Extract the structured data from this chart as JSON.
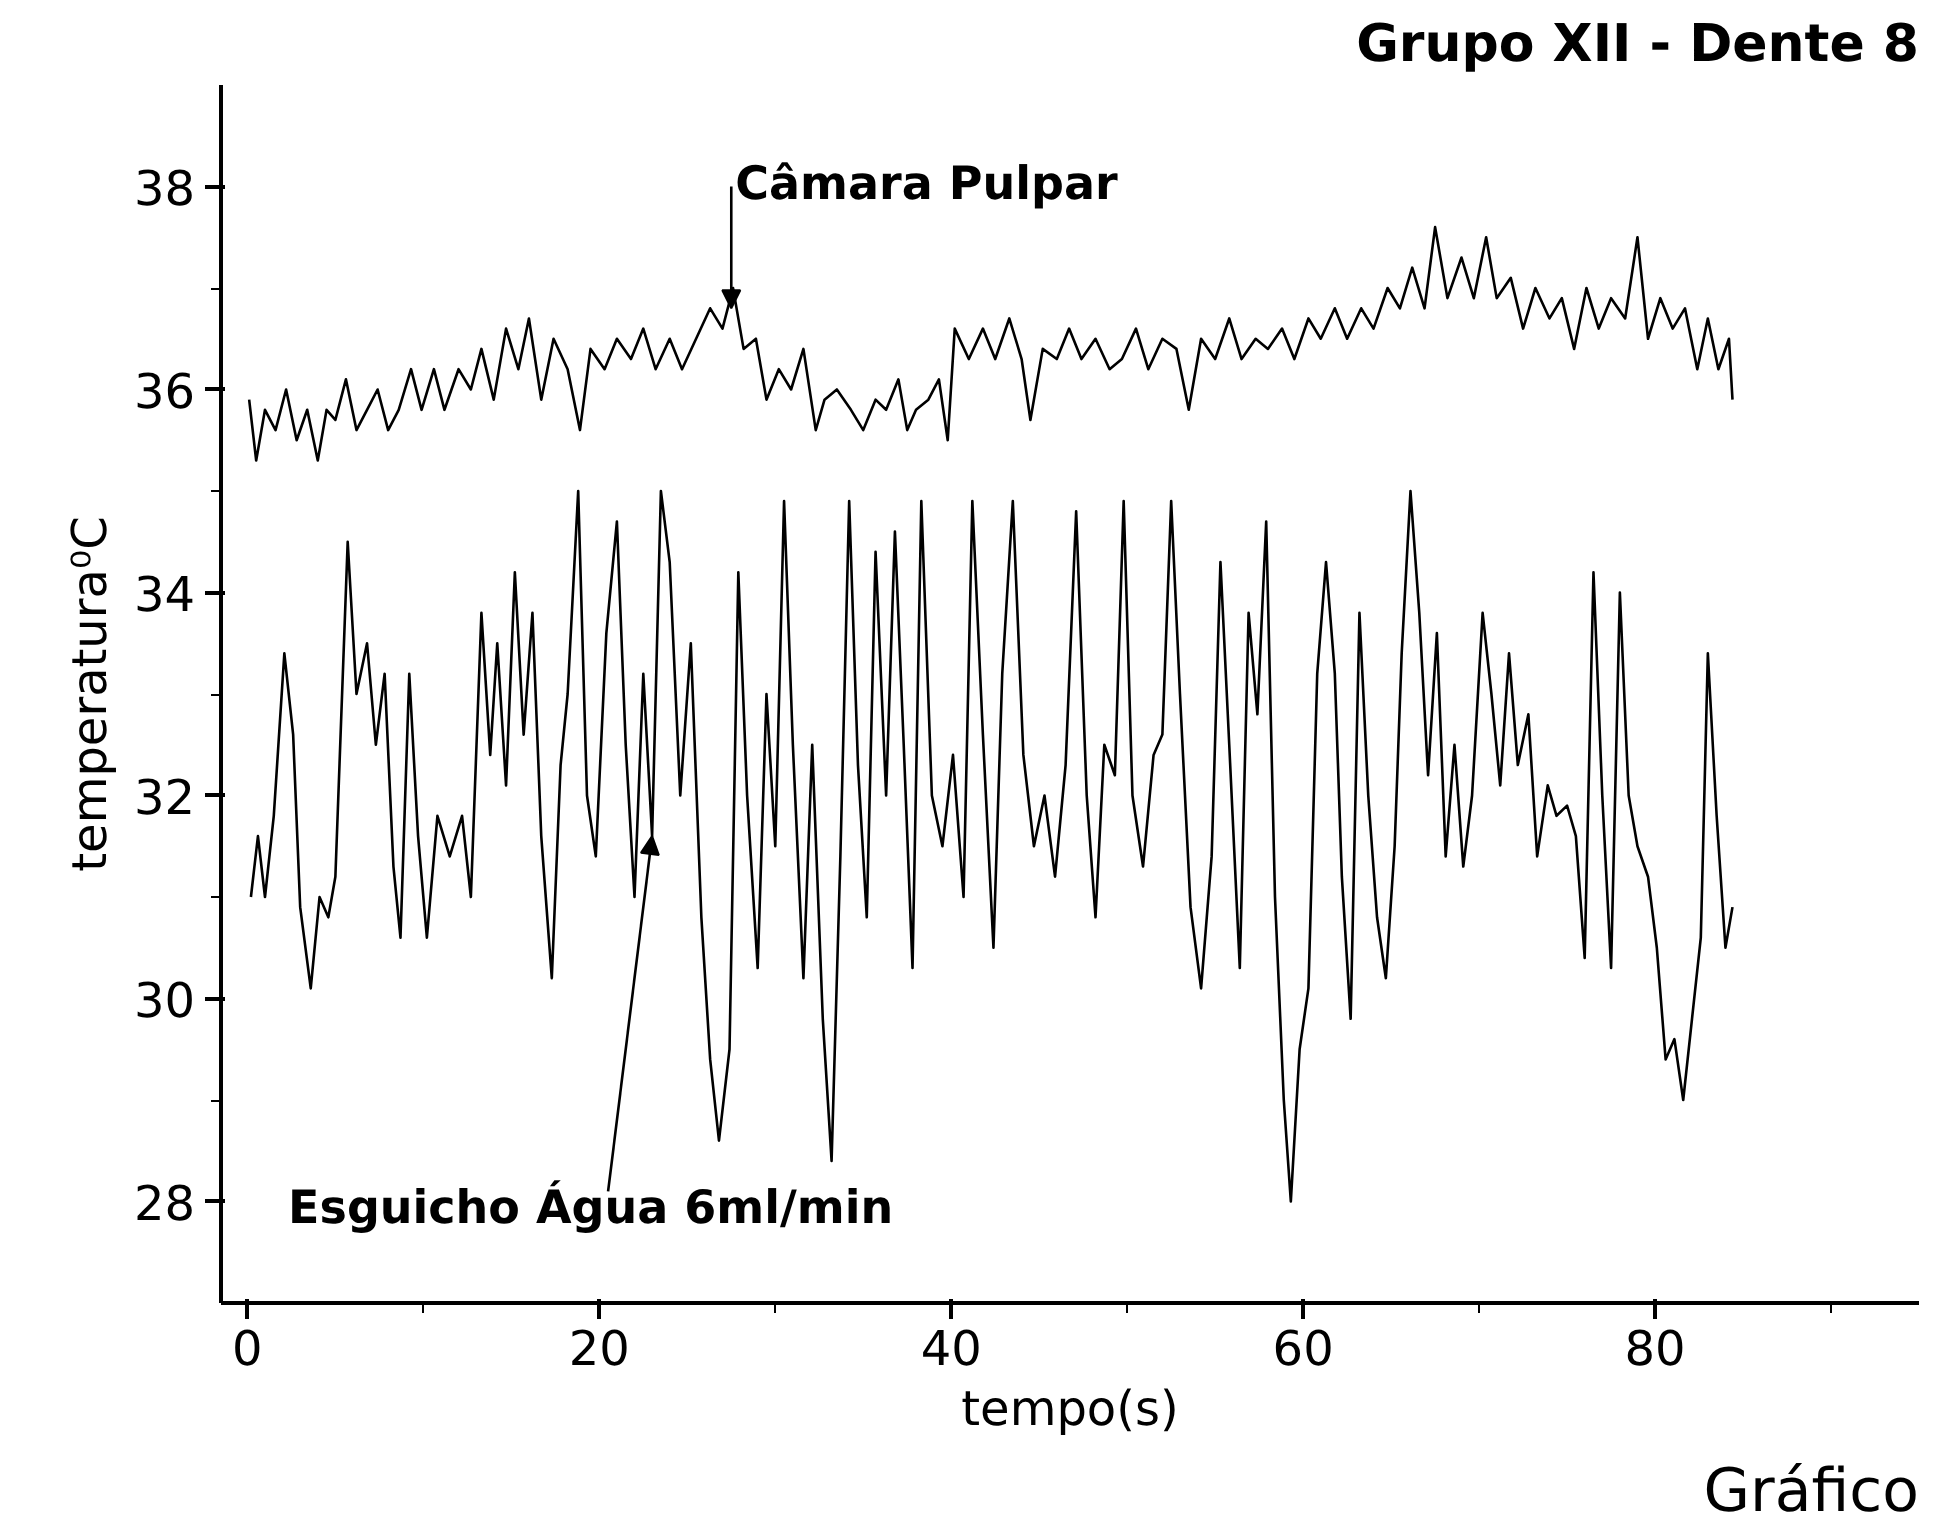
{
  "chart_data": {
    "type": "line",
    "title": "Grupo XII - Dente 8",
    "xlabel": "tempo(s)",
    "ylabel": "temperatura⁰C",
    "xlim": [
      -1.5,
      95
    ],
    "xticks": [
      0,
      20,
      40,
      60,
      80
    ],
    "ylim": [
      27,
      39
    ],
    "yticks": [
      28,
      30,
      32,
      34,
      36,
      38
    ],
    "grid": false,
    "line_style": "solid",
    "marker": "none",
    "annotations": [
      {
        "text": "Câmara Pulpar",
        "x": 27.5,
        "y": 36.8
      },
      {
        "text": "Esguicho Água 6ml/min",
        "x": 23.0,
        "y": 31.6
      },
      "Gráfico"
    ],
    "series": [
      {
        "color": "#000000",
        "x": [
          0.1,
          0.5,
          1.0,
          1.6,
          2.2,
          2.8,
          3.4,
          4.0,
          4.5,
          5.0,
          5.6,
          6.2,
          6.8,
          7.4,
          8.0,
          8.6,
          9.3,
          9.9,
          10.6,
          11.2,
          12.0,
          12.7,
          13.3,
          14.0,
          14.7,
          15.4,
          16.0,
          16.7,
          17.4,
          18.2,
          18.9,
          19.5,
          20.3,
          21.0,
          21.8,
          22.5,
          23.2,
          24.0,
          24.7,
          25.5,
          26.3,
          27.0,
          27.6,
          28.2,
          28.9,
          29.5,
          30.2,
          30.9,
          31.6,
          32.3,
          32.8,
          33.5,
          34.3,
          35.0,
          35.7,
          36.3,
          37.0,
          37.5,
          38.0,
          38.7,
          39.3,
          39.8,
          40.2,
          41.0,
          41.8,
          42.5,
          43.3,
          44.0,
          44.5,
          45.2,
          46.0,
          46.7,
          47.4,
          48.2,
          49.0,
          49.7,
          50.5,
          51.2,
          52.0,
          52.8,
          53.5,
          54.2,
          55.0,
          55.8,
          56.5,
          57.3,
          58.0,
          58.8,
          59.5,
          60.3,
          61.0,
          61.8,
          62.5,
          63.3,
          64.0,
          64.8,
          65.5,
          66.2,
          66.9,
          67.5,
          68.2,
          69.0,
          69.7,
          70.4,
          71.0,
          71.8,
          72.5,
          73.2,
          74.0,
          74.7,
          75.4,
          76.1,
          76.8,
          77.5,
          78.3,
          79.0,
          79.6,
          80.3,
          81.0,
          81.7,
          82.4,
          83.0,
          83.6,
          84.2,
          84.4
        ],
        "values": [
          35.9,
          35.3,
          35.8,
          35.6,
          36.0,
          35.5,
          35.8,
          35.3,
          35.8,
          35.7,
          36.1,
          35.6,
          35.8,
          36.0,
          35.6,
          35.8,
          36.2,
          35.8,
          36.2,
          35.8,
          36.2,
          36.0,
          36.4,
          35.9,
          36.6,
          36.2,
          36.7,
          35.9,
          36.5,
          36.2,
          35.6,
          36.4,
          36.2,
          36.5,
          36.3,
          36.6,
          36.2,
          36.5,
          36.2,
          36.5,
          36.8,
          36.6,
          37.0,
          36.4,
          36.5,
          35.9,
          36.2,
          36.0,
          36.4,
          35.6,
          35.9,
          36.0,
          35.8,
          35.6,
          35.9,
          35.8,
          36.1,
          35.6,
          35.8,
          35.9,
          36.1,
          35.5,
          36.6,
          36.3,
          36.6,
          36.3,
          36.7,
          36.3,
          35.7,
          36.4,
          36.3,
          36.6,
          36.3,
          36.5,
          36.2,
          36.3,
          36.6,
          36.2,
          36.5,
          36.4,
          35.8,
          36.5,
          36.3,
          36.7,
          36.3,
          36.5,
          36.4,
          36.6,
          36.3,
          36.7,
          36.5,
          36.8,
          36.5,
          36.8,
          36.6,
          37.0,
          36.8,
          37.2,
          36.8,
          37.6,
          36.9,
          37.3,
          36.9,
          37.5,
          36.9,
          37.1,
          36.6,
          37.0,
          36.7,
          36.9,
          36.4,
          37.0,
          36.6,
          36.9,
          36.7,
          37.5,
          36.5,
          36.9,
          36.6,
          36.8,
          36.2,
          36.7,
          36.2,
          36.5,
          35.9
        ]
      },
      {
        "color": "#000000",
        "x": [
          0.2,
          0.6,
          1.0,
          1.5,
          2.1,
          2.6,
          3.0,
          3.6,
          4.1,
          4.6,
          5.0,
          5.7,
          6.2,
          6.8,
          7.3,
          7.8,
          8.3,
          8.7,
          9.2,
          9.7,
          10.2,
          10.8,
          11.5,
          12.2,
          12.7,
          13.3,
          13.8,
          14.2,
          14.7,
          15.2,
          15.7,
          16.2,
          16.7,
          17.3,
          17.8,
          18.2,
          18.8,
          19.3,
          19.8,
          20.4,
          21.0,
          21.5,
          22.0,
          22.5,
          23.0,
          23.5,
          24.0,
          24.6,
          25.2,
          25.8,
          26.3,
          26.8,
          27.4,
          27.9,
          28.4,
          29.0,
          29.5,
          30.0,
          30.5,
          31.0,
          31.6,
          32.1,
          32.7,
          33.2,
          33.7,
          34.2,
          34.7,
          35.2,
          35.7,
          36.3,
          36.8,
          37.3,
          37.8,
          38.3,
          38.9,
          39.5,
          40.1,
          40.7,
          41.2,
          41.8,
          42.4,
          42.9,
          43.5,
          44.1,
          44.7,
          45.3,
          45.9,
          46.5,
          47.1,
          47.7,
          48.2,
          48.7,
          49.3,
          49.8,
          50.3,
          50.9,
          51.5,
          52.0,
          52.5,
          53.0,
          53.6,
          54.2,
          54.8,
          55.3,
          55.8,
          56.4,
          56.9,
          57.4,
          57.9,
          58.4,
          58.9,
          59.3,
          59.8,
          60.3,
          60.8,
          61.3,
          61.8,
          62.2,
          62.7,
          63.2,
          63.7,
          64.2,
          64.7,
          65.2,
          65.6,
          66.1,
          66.6,
          67.1,
          67.6,
          68.1,
          68.6,
          69.1,
          69.6,
          70.2,
          70.7,
          71.2,
          71.7,
          72.2,
          72.8,
          73.3,
          73.9,
          74.4,
          75.0,
          75.5,
          76.0,
          76.5,
          77.0,
          77.5,
          78.0,
          78.5,
          79.0,
          79.6,
          80.1,
          80.6,
          81.1,
          81.6,
          82.1,
          82.6,
          83.0,
          83.5,
          84.0,
          84.4
        ],
        "values": [
          31.0,
          31.6,
          31.0,
          31.8,
          33.4,
          32.6,
          30.9,
          30.1,
          31.0,
          30.8,
          31.2,
          34.5,
          33.0,
          33.5,
          32.5,
          33.2,
          31.3,
          30.6,
          33.2,
          31.6,
          30.6,
          31.8,
          31.4,
          31.8,
          31.0,
          33.8,
          32.4,
          33.5,
          32.1,
          34.2,
          32.6,
          33.8,
          31.6,
          30.2,
          32.3,
          33.0,
          35.0,
          32.0,
          31.4,
          33.6,
          34.7,
          32.5,
          31.0,
          33.2,
          31.6,
          35.0,
          34.3,
          32.0,
          33.5,
          30.8,
          29.4,
          28.6,
          29.5,
          34.2,
          32.0,
          30.3,
          33.0,
          31.5,
          34.9,
          32.5,
          30.2,
          32.5,
          29.8,
          28.4,
          31.4,
          34.9,
          32.3,
          30.8,
          34.4,
          32.0,
          34.6,
          32.5,
          30.3,
          34.9,
          32.0,
          31.5,
          32.4,
          31.0,
          34.9,
          32.6,
          30.5,
          33.2,
          34.9,
          32.4,
          31.5,
          32.0,
          31.2,
          32.3,
          34.8,
          32.0,
          30.8,
          32.5,
          32.2,
          34.9,
          32.0,
          31.3,
          32.4,
          32.6,
          34.9,
          33.0,
          30.9,
          30.1,
          31.4,
          34.3,
          32.5,
          30.3,
          33.8,
          32.8,
          34.7,
          31.0,
          29.0,
          28.0,
          29.5,
          30.1,
          33.2,
          34.3,
          33.2,
          31.2,
          29.8,
          33.8,
          32.0,
          30.8,
          30.2,
          31.5,
          33.4,
          35.0,
          33.8,
          32.2,
          33.6,
          31.4,
          32.5,
          31.3,
          32.0,
          33.8,
          33.0,
          32.1,
          33.4,
          32.3,
          32.8,
          31.4,
          32.1,
          31.8,
          31.9,
          31.6,
          30.4,
          34.2,
          32.0,
          30.3,
          34.0,
          32.0,
          31.5,
          31.2,
          30.5,
          29.4,
          29.6,
          29.0,
          29.8,
          30.6,
          33.4,
          31.8,
          30.5,
          30.9
        ]
      }
    ]
  }
}
